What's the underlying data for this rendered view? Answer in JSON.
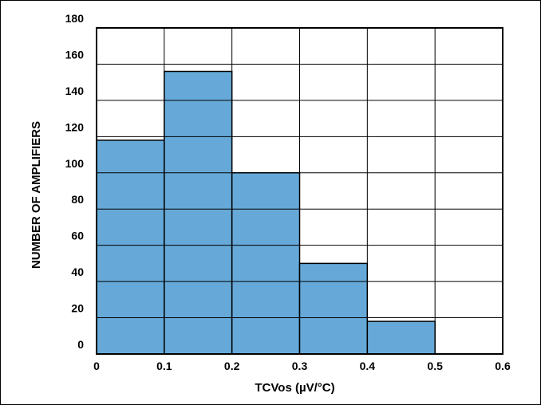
{
  "chart_data": {
    "type": "bar",
    "title": "",
    "xlabel": "TCVos (µV/°C)",
    "ylabel": "NUMBER OF AMPLIFIERS",
    "bin_edges": [
      0,
      0.1,
      0.2,
      0.3,
      0.4,
      0.5
    ],
    "values": [
      118,
      156,
      100,
      50,
      18
    ],
    "xlim": [
      0,
      0.6
    ],
    "ylim": [
      0,
      180
    ],
    "x_ticks": [
      "0",
      "0.1",
      "0.2",
      "0.3",
      "0.4",
      "0.5",
      "0.6"
    ],
    "y_ticks": [
      "0",
      "20",
      "40",
      "60",
      "80",
      "100",
      "120",
      "140",
      "160",
      "180"
    ],
    "grid": true,
    "bar_color": "#66a9d8"
  }
}
